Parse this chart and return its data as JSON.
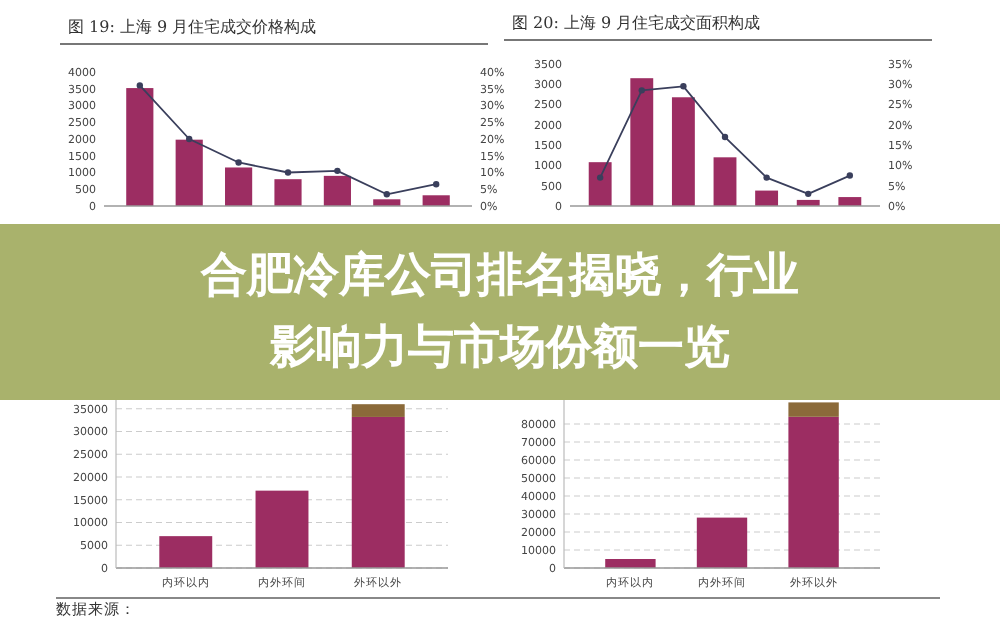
{
  "chart_data": [
    {
      "type": "bar",
      "title": "图 19: 上海 9 月住宅成交价格构成",
      "categories": [
        null,
        null,
        null,
        null,
        null,
        null,
        null
      ],
      "marker": "circle",
      "ylim": [
        0,
        4000
      ],
      "yticks": [
        0,
        500,
        1000,
        1500,
        2000,
        2500,
        3000,
        3500,
        4000
      ],
      "y2lim": [
        0,
        40
      ],
      "y2ticks": [
        {
          "value": 0,
          "label": "0%"
        },
        {
          "value": 5,
          "label": "5%"
        },
        {
          "value": 10,
          "label": "10%"
        },
        {
          "value": 15,
          "label": "15%"
        },
        {
          "value": 20,
          "label": "20%"
        },
        {
          "value": 25,
          "label": "25%"
        },
        {
          "value": 30,
          "label": "30%"
        },
        {
          "value": 35,
          "label": "35%"
        },
        {
          "value": 40,
          "label": "40%"
        }
      ],
      "grid": false,
      "series": [
        {
          "type": "bar",
          "color": "#9c2d62",
          "values": [
            3520,
            1980,
            1150,
            800,
            900,
            200,
            320
          ]
        },
        {
          "type": "line",
          "axis": "y2",
          "color": "#3a3f5c",
          "values": [
            36,
            20,
            13,
            10,
            10.5,
            3.5,
            6.5
          ]
        }
      ]
    },
    {
      "type": "bar",
      "title": "图 20: 上海 9 月住宅成交面积构成",
      "categories": [
        null,
        null,
        null,
        null,
        null,
        null,
        null
      ],
      "marker": "circle",
      "ylim": [
        0,
        3500
      ],
      "yticks": [
        0,
        500,
        1000,
        1500,
        2000,
        2500,
        3000,
        3500
      ],
      "y2lim": [
        0,
        35
      ],
      "y2ticks": [
        {
          "value": 0,
          "label": "0%"
        },
        {
          "value": 5,
          "label": "5%"
        },
        {
          "value": 10,
          "label": "10%"
        },
        {
          "value": 15,
          "label": "15%"
        },
        {
          "value": 20,
          "label": "20%"
        },
        {
          "value": 25,
          "label": "25%"
        },
        {
          "value": 30,
          "label": "30%"
        },
        {
          "value": 35,
          "label": "35%"
        }
      ],
      "grid": false,
      "series": [
        {
          "type": "bar",
          "color": "#9c2d62",
          "values": [
            1080,
            3150,
            2680,
            1200,
            380,
            150,
            220
          ]
        },
        {
          "type": "line",
          "axis": "y2",
          "color": "#3a3f5c",
          "values": [
            7,
            28.5,
            29.5,
            17,
            7,
            3,
            7.5
          ]
        }
      ]
    },
    {
      "type": "other",
      "title": "合肥冷库公司排名揭晓，行业影响力与市场份额一览"
    },
    {
      "type": "bar",
      "categories": [
        "内环以内",
        "内外环间",
        "外环以外"
      ],
      "stacked": true,
      "ylim": [
        0,
        40000
      ],
      "yticks": [
        0,
        5000,
        10000,
        15000,
        20000,
        25000,
        30000,
        35000
      ],
      "grid": "y",
      "annotations": [
        "数据来源："
      ],
      "series": [
        {
          "type": "bar",
          "color": "#9c2d62",
          "values": [
            7000,
            17000,
            33200
          ]
        },
        {
          "type": "bar",
          "color": "#8b6a3a",
          "values": [
            0,
            0,
            2800
          ]
        }
      ]
    },
    {
      "type": "bar",
      "categories": [
        "内环以内",
        "内外环间",
        "外环以外"
      ],
      "stacked": true,
      "ylim": [
        0,
        100000
      ],
      "yticks": [
        0,
        10000,
        20000,
        30000,
        40000,
        50000,
        60000,
        70000,
        80000
      ],
      "grid": "y",
      "series": [
        {
          "type": "bar",
          "color": "#9c2d62",
          "values": [
            5000,
            28000,
            84000
          ]
        },
        {
          "type": "bar",
          "color": "#8b6a3a",
          "values": [
            0,
            0,
            8000
          ]
        }
      ]
    }
  ]
}
